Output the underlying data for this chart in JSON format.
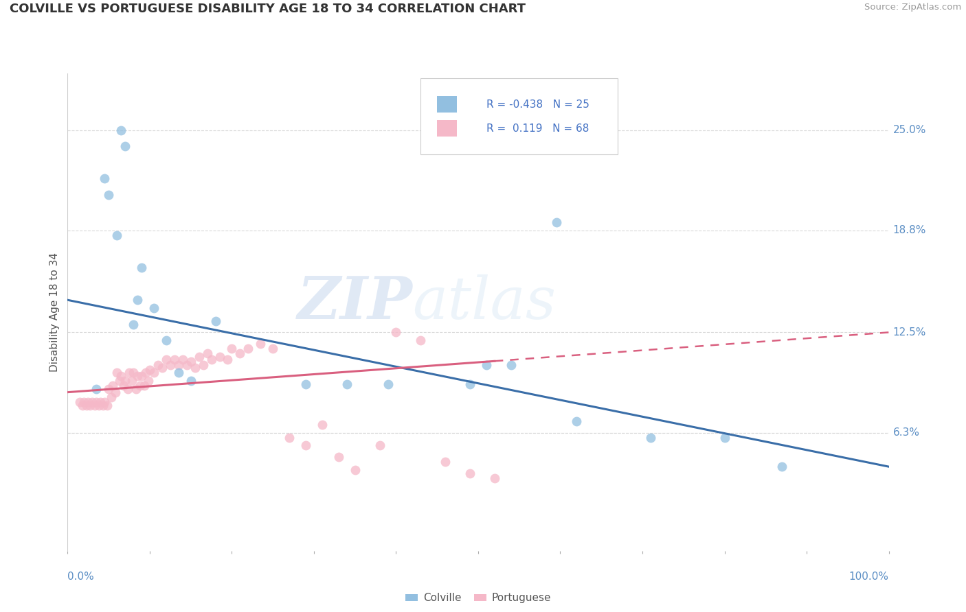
{
  "title": "COLVILLE VS PORTUGUESE DISABILITY AGE 18 TO 34 CORRELATION CHART",
  "source": "Source: ZipAtlas.com",
  "ylabel": "Disability Age 18 to 34",
  "ytick_labels": [
    "6.3%",
    "12.5%",
    "18.8%",
    "25.0%"
  ],
  "ytick_values": [
    0.063,
    0.125,
    0.188,
    0.25
  ],
  "xlim": [
    0.0,
    1.0
  ],
  "ylim": [
    -0.01,
    0.285
  ],
  "legend_colville": "Colville",
  "legend_portuguese": "Portuguese",
  "r_colville": -0.438,
  "n_colville": 25,
  "r_portuguese": 0.119,
  "n_portuguese": 68,
  "colville_color": "#92bfe0",
  "portuguese_color": "#f5b8c8",
  "colville_line_color": "#3a6ea8",
  "portuguese_line_color": "#d95f7f",
  "watermark_zip": "ZIP",
  "watermark_atlas": "atlas",
  "background_color": "#ffffff",
  "colville_x": [
    0.035,
    0.045,
    0.05,
    0.06,
    0.065,
    0.07,
    0.08,
    0.085,
    0.09,
    0.105,
    0.12,
    0.135,
    0.15,
    0.18,
    0.29,
    0.34,
    0.39,
    0.49,
    0.51,
    0.54,
    0.595,
    0.62,
    0.71,
    0.8,
    0.87
  ],
  "colville_y": [
    0.09,
    0.22,
    0.21,
    0.185,
    0.25,
    0.24,
    0.13,
    0.145,
    0.165,
    0.14,
    0.12,
    0.1,
    0.095,
    0.132,
    0.093,
    0.093,
    0.093,
    0.093,
    0.105,
    0.105,
    0.193,
    0.07,
    0.06,
    0.06,
    0.042
  ],
  "portuguese_x": [
    0.015,
    0.018,
    0.02,
    0.023,
    0.025,
    0.027,
    0.03,
    0.033,
    0.035,
    0.038,
    0.04,
    0.043,
    0.045,
    0.048,
    0.05,
    0.053,
    0.055,
    0.058,
    0.06,
    0.063,
    0.065,
    0.068,
    0.07,
    0.073,
    0.075,
    0.078,
    0.08,
    0.083,
    0.085,
    0.088,
    0.09,
    0.093,
    0.095,
    0.098,
    0.1,
    0.105,
    0.11,
    0.115,
    0.12,
    0.125,
    0.13,
    0.135,
    0.14,
    0.145,
    0.15,
    0.155,
    0.16,
    0.165,
    0.17,
    0.175,
    0.185,
    0.195,
    0.2,
    0.21,
    0.22,
    0.235,
    0.25,
    0.27,
    0.29,
    0.31,
    0.33,
    0.35,
    0.38,
    0.4,
    0.43,
    0.46,
    0.49,
    0.52
  ],
  "portuguese_y": [
    0.082,
    0.08,
    0.082,
    0.08,
    0.082,
    0.08,
    0.082,
    0.08,
    0.082,
    0.08,
    0.082,
    0.08,
    0.082,
    0.08,
    0.09,
    0.085,
    0.092,
    0.088,
    0.1,
    0.095,
    0.098,
    0.092,
    0.095,
    0.09,
    0.1,
    0.095,
    0.1,
    0.09,
    0.098,
    0.092,
    0.098,
    0.092,
    0.1,
    0.095,
    0.102,
    0.1,
    0.105,
    0.103,
    0.108,
    0.105,
    0.108,
    0.105,
    0.108,
    0.105,
    0.107,
    0.103,
    0.11,
    0.105,
    0.112,
    0.108,
    0.11,
    0.108,
    0.115,
    0.112,
    0.115,
    0.118,
    0.115,
    0.06,
    0.055,
    0.068,
    0.048,
    0.04,
    0.055,
    0.125,
    0.12,
    0.045,
    0.038,
    0.035
  ],
  "portuguese_line_xmax": 0.52,
  "grid_color": "#d8d8d8",
  "grid_linestyle": "--",
  "tick_color": "#aaaaaa"
}
